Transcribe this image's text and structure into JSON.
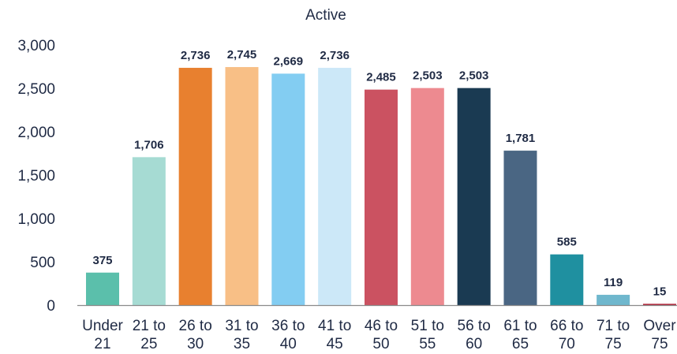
{
  "chart_data": {
    "type": "bar",
    "title": "Active",
    "xlabel": "",
    "ylabel": "",
    "ylim": [
      0,
      3000
    ],
    "yticks": [
      "0",
      "500",
      "1,000",
      "1,500",
      "2,000",
      "2,500",
      "3,000"
    ],
    "grid": false,
    "legend": "none",
    "categories": [
      [
        "Under",
        "21"
      ],
      [
        "21 to",
        "25"
      ],
      [
        "26 to",
        "30"
      ],
      [
        "31 to",
        "35"
      ],
      [
        "36 to",
        "40"
      ],
      [
        "41 to",
        "45"
      ],
      [
        "46 to",
        "50"
      ],
      [
        "51 to",
        "55"
      ],
      [
        "56 to",
        "60"
      ],
      [
        "61 to",
        "65"
      ],
      [
        "66 to",
        "70"
      ],
      [
        "71 to",
        "75"
      ],
      [
        "Over",
        "75"
      ]
    ],
    "values": [
      375,
      1706,
      2736,
      2745,
      2669,
      2736,
      2485,
      2503,
      2503,
      1781,
      585,
      119,
      15
    ],
    "value_labels": [
      "375",
      "1,706",
      "2,736",
      "2,745",
      "2,669",
      "2,736",
      "2,485",
      "2,503",
      "2,503",
      "1,781",
      "585",
      "119",
      "15"
    ],
    "colors": [
      "#5bbfab",
      "#a6dbd3",
      "#e8802f",
      "#f8bf86",
      "#83cdf2",
      "#cce8f8",
      "#cb5261",
      "#ed8a90",
      "#1a3a52",
      "#4a6683",
      "#1f90a0",
      "#6fb7cd",
      "#b0273d"
    ]
  }
}
